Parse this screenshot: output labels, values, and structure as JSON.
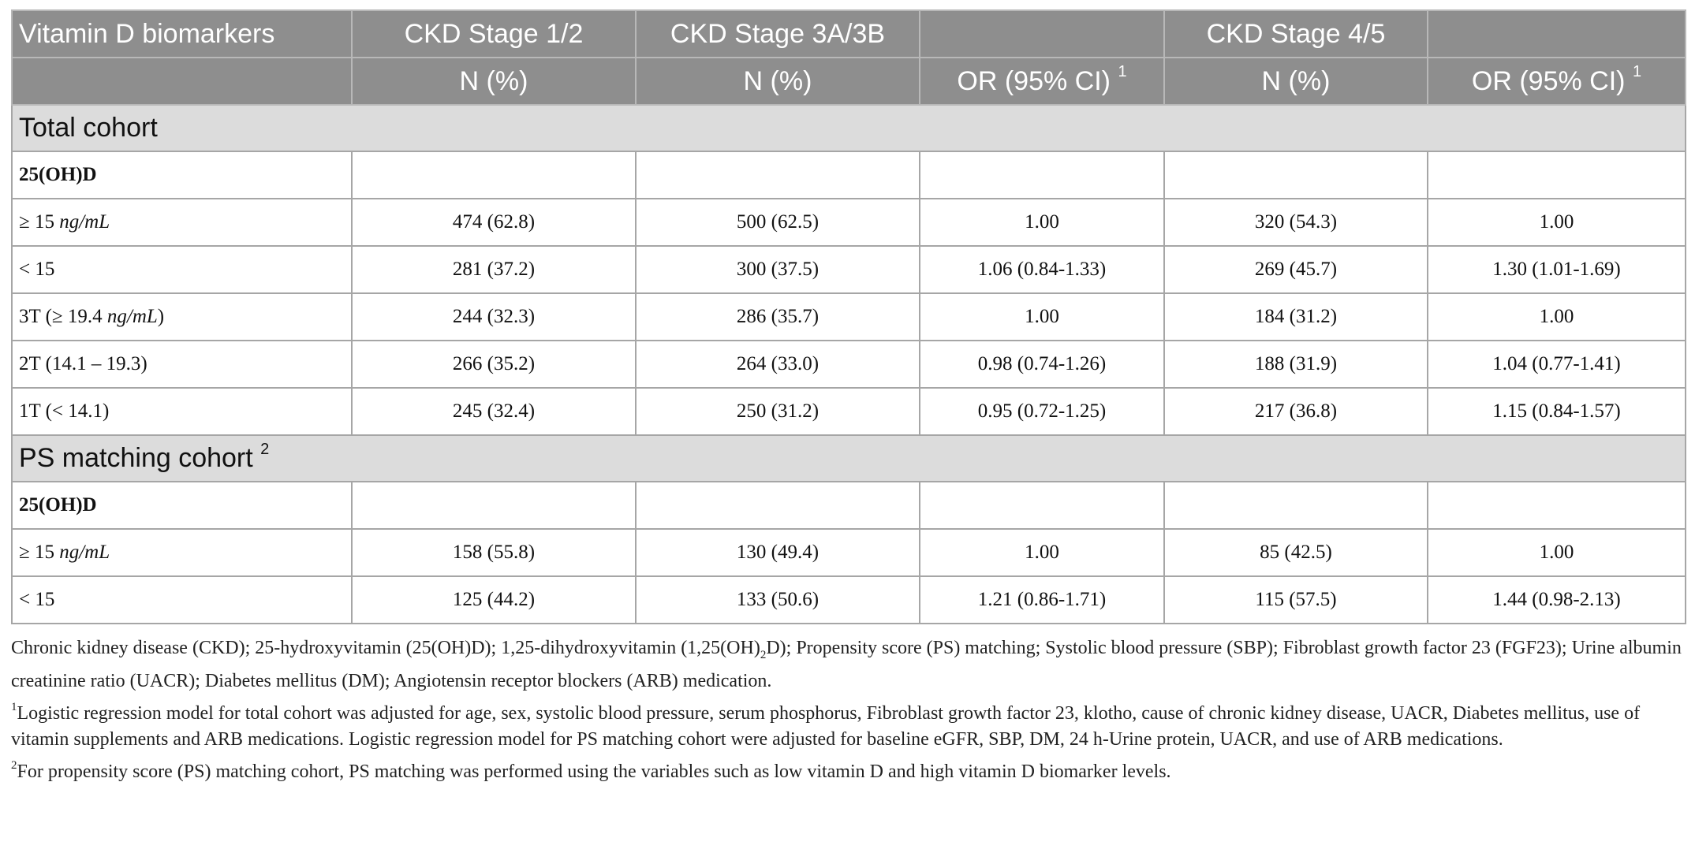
{
  "table": {
    "header_row1": {
      "col0": "Vitamin D biomarkers",
      "col1": "CKD Stage 1/2",
      "col2": "CKD Stage 3A/3B",
      "col3": "",
      "col4": "CKD Stage 4/5",
      "col5": ""
    },
    "header_row2": {
      "col0": "",
      "col1": "N (%)",
      "col2": "N (%)",
      "col3": "OR (95% CI)",
      "col3_sup": "1",
      "col4": "N (%)",
      "col5": "OR (95% CI)",
      "col5_sup": "1"
    },
    "section_total": {
      "title": "Total cohort",
      "subheading": "25(OH)D",
      "rows": [
        {
          "label": "≥ 15",
          "unit": "ng/mL",
          "c1": "474 (62.8)",
          "c2": "500 (62.5)",
          "c3": "1.00",
          "c4": "320 (54.3)",
          "c5": "1.00"
        },
        {
          "label": "< 15",
          "unit": "",
          "c1": "281 (37.2)",
          "c2": "300 (37.5)",
          "c3": "1.06 (0.84-1.33)",
          "c4": "269 (45.7)",
          "c5": "1.30 (1.01-1.69)"
        },
        {
          "label_pre": "3T (≥ 19.4 ",
          "unit": "ng/mL",
          "label_post": ")",
          "c1": "244 (32.3)",
          "c2": "286 (35.7)",
          "c3": "1.00",
          "c4": "184 (31.2)",
          "c5": "1.00"
        },
        {
          "label": "2T (14.1 – 19.3)",
          "c1": "266 (35.2)",
          "c2": "264 (33.0)",
          "c3": "0.98 (0.74-1.26)",
          "c4": "188 (31.9)",
          "c5": "1.04 (0.77-1.41)"
        },
        {
          "label": "1T (< 14.1)",
          "c1": "245 (32.4)",
          "c2": "250 (31.2)",
          "c3": "0.95 (0.72-1.25)",
          "c4": "217 (36.8)",
          "c5": "1.15 (0.84-1.57)"
        }
      ]
    },
    "section_ps": {
      "title": "PS matching cohort",
      "title_sup": "2",
      "subheading": "25(OH)D",
      "rows": [
        {
          "label": "≥ 15",
          "unit": "ng/mL",
          "c1": "158 (55.8)",
          "c2": "130 (49.4)",
          "c3": "1.00",
          "c4": "85 (42.5)",
          "c5": "1.00"
        },
        {
          "label": "< 15",
          "c1": "125 (44.2)",
          "c2": "133 (50.6)",
          "c3": "1.21 (0.86-1.71)",
          "c4": "115 (57.5)",
          "c5": "1.44 (0.98-2.13)"
        }
      ]
    }
  },
  "notes": {
    "abbrev_part1": "Chronic kidney disease (CKD); 25-hydroxyvitamin (25(OH)D); 1,25-dihydroxyvitamin (1,25(OH)",
    "abbrev_sub": "2",
    "abbrev_part2": "D); Propensity score (PS) matching; Systolic blood pressure (SBP); Fibroblast growth factor 23 (FGF23); Urine albumin creatinine ratio (UACR); Diabetes mellitus (DM); Angiotensin receptor blockers (ARB) medication.",
    "note1_sup": "1",
    "note1": "Logistic regression model for total cohort was adjusted for age, sex, systolic blood pressure, serum phosphorus, Fibroblast growth factor 23, klotho, cause of chronic kidney disease, UACR, Diabetes mellitus, use of vitamin supplements and ARB medications. Logistic regression model for PS matching cohort were adjusted for baseline eGFR, SBP, DM, 24 h-Urine protein, UACR, and use of ARB medications.",
    "note2_sup": "2",
    "note2": "For propensity score (PS) matching cohort, PS matching was performed using the variables such as low vitamin D and high vitamin D biomarker levels."
  }
}
